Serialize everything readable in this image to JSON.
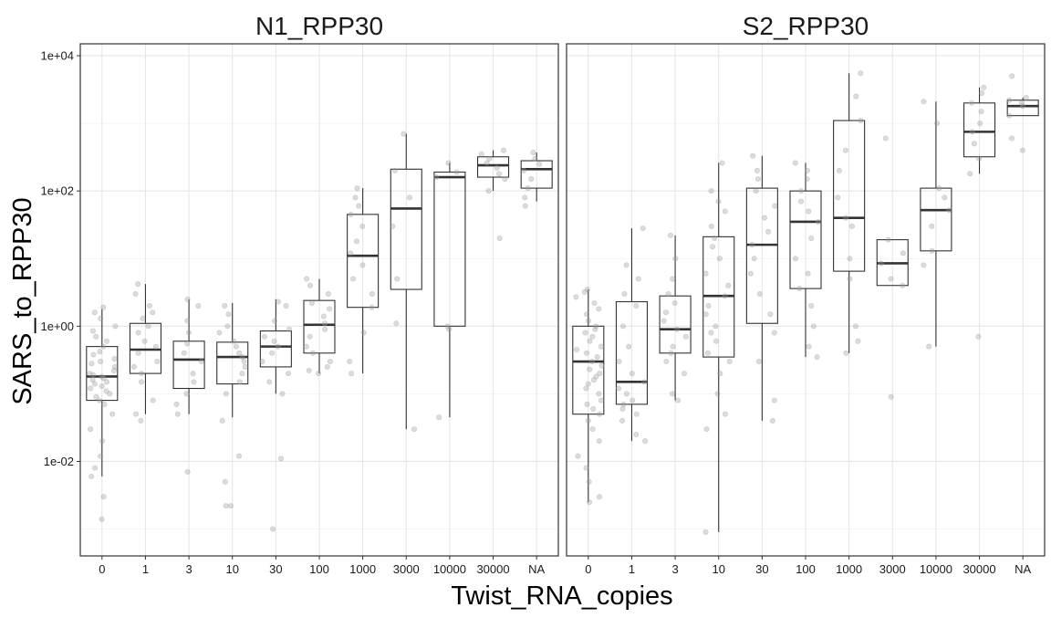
{
  "chart_data": {
    "type": "box",
    "facets": [
      "N1_RPP30",
      "S2_RPP30"
    ],
    "categories": [
      "0",
      "1",
      "3",
      "10",
      "30",
      "100",
      "1000",
      "3000",
      "10000",
      "30000",
      "NA"
    ],
    "xlabel": "Twist_RNA_copies",
    "ylabel": "SARS_to_RPP30",
    "y_scale": "log10",
    "ylim": [
      0.0004,
      15000
    ],
    "y_ticks": [
      0.01,
      1,
      100,
      10000
    ],
    "y_tick_labels": [
      "1e-02",
      "1e+00",
      "1e+02",
      "1e+04"
    ],
    "grid": true,
    "colors": {
      "box": "#333333",
      "points": "#9a9a9a",
      "grid": "#e6e6e6",
      "panel_border": "#333333"
    },
    "boxes": {
      "N1_RPP30": [
        {
          "category": "0",
          "whisker_low": 0.006,
          "q1": 0.08,
          "median": 0.18,
          "q3": 0.5,
          "whisker_high": 1.8
        },
        {
          "category": "1",
          "whisker_low": 0.05,
          "q1": 0.2,
          "median": 0.45,
          "q3": 1.1,
          "whisker_high": 4.2
        },
        {
          "category": "3",
          "whisker_low": 0.05,
          "q1": 0.12,
          "median": 0.32,
          "q3": 0.6,
          "whisker_high": 2.5
        },
        {
          "category": "10",
          "whisker_low": 0.045,
          "q1": 0.14,
          "median": 0.35,
          "q3": 0.58,
          "whisker_high": 2.2
        },
        {
          "category": "30",
          "whisker_low": 0.1,
          "q1": 0.25,
          "median": 0.5,
          "q3": 0.85,
          "whisker_high": 2.5
        },
        {
          "category": "100",
          "whisker_low": 0.2,
          "q1": 0.4,
          "median": 1.05,
          "q3": 2.4,
          "whisker_high": 5.0
        },
        {
          "category": "1000",
          "whisker_low": 0.2,
          "q1": 1.9,
          "median": 11,
          "q3": 45,
          "whisker_high": 110
        },
        {
          "category": "3000",
          "whisker_low": 0.03,
          "q1": 3.5,
          "median": 55,
          "q3": 210,
          "whisker_high": 700
        },
        {
          "category": "10000",
          "whisker_low": 0.045,
          "q1": 1.0,
          "median": 160,
          "q3": 190,
          "whisker_high": 260
        },
        {
          "category": "30000",
          "whisker_low": 100,
          "q1": 160,
          "median": 240,
          "q3": 320,
          "whisker_high": 400
        },
        {
          "category": "NA",
          "whisker_low": 70,
          "q1": 110,
          "median": 210,
          "q3": 280,
          "whisker_high": 370
        }
      ],
      "S2_RPP30": [
        {
          "category": "0",
          "whisker_low": 0.0025,
          "q1": 0.05,
          "median": 0.3,
          "q3": 1.0,
          "whisker_high": 3.5
        },
        {
          "category": "1",
          "whisker_low": 0.02,
          "q1": 0.07,
          "median": 0.15,
          "q3": 2.3,
          "whisker_high": 28
        },
        {
          "category": "3",
          "whisker_low": 0.08,
          "q1": 0.4,
          "median": 0.9,
          "q3": 2.8,
          "whisker_high": 22
        },
        {
          "category": "10",
          "whisker_low": 0.0009,
          "q1": 0.35,
          "median": 2.8,
          "q3": 21,
          "whisker_high": 260
        },
        {
          "category": "30",
          "whisker_low": 0.04,
          "q1": 1.1,
          "median": 16,
          "q3": 110,
          "whisker_high": 330
        },
        {
          "category": "100",
          "whisker_low": 0.35,
          "q1": 3.6,
          "median": 35,
          "q3": 100,
          "whisker_high": 260
        },
        {
          "category": "1000",
          "whisker_low": 0.4,
          "q1": 6.5,
          "median": 40,
          "q3": 1100,
          "whisker_high": 5500
        },
        {
          "category": "3000",
          "whisker_low": 4,
          "q1": 4,
          "median": 8.5,
          "q3": 19,
          "whisker_high": 19
        },
        {
          "category": "10000",
          "whisker_low": 0.5,
          "q1": 13,
          "median": 52,
          "q3": 110,
          "whisker_high": 2100
        },
        {
          "category": "30000",
          "whisker_low": 180,
          "q1": 320,
          "median": 750,
          "q3": 2000,
          "whisker_high": 3400
        },
        {
          "category": "NA",
          "whisker_low": 1300,
          "q1": 1300,
          "median": 1800,
          "q3": 2200,
          "whisker_high": 2400
        }
      ]
    },
    "points": {
      "N1_RPP30": {
        "0": [
          0.0014,
          0.003,
          0.006,
          0.008,
          0.012,
          0.02,
          0.03,
          0.05,
          0.07,
          0.08,
          0.09,
          0.1,
          0.11,
          0.12,
          0.13,
          0.14,
          0.15,
          0.16,
          0.17,
          0.18,
          0.19,
          0.2,
          0.22,
          0.25,
          0.28,
          0.3,
          0.33,
          0.38,
          0.42,
          0.5,
          0.6,
          0.7,
          0.85,
          1.0,
          1.3,
          1.6,
          1.9
        ],
        "1": [
          0.04,
          0.05,
          0.08,
          0.15,
          0.2,
          0.25,
          0.3,
          0.4,
          0.5,
          0.6,
          0.8,
          1.0,
          1.3,
          1.6,
          2.0,
          3.0,
          4.2
        ],
        "3": [
          0.007,
          0.05,
          0.07,
          0.1,
          0.15,
          0.2,
          0.3,
          0.4,
          0.55,
          0.8,
          1.2,
          2.0,
          2.5
        ],
        "10": [
          0.0022,
          0.0022,
          0.005,
          0.012,
          0.04,
          0.1,
          0.15,
          0.2,
          0.25,
          0.3,
          0.35,
          0.4,
          0.5,
          0.6,
          0.8,
          1.0,
          1.5,
          2.0
        ],
        "30": [
          0.001,
          0.011,
          0.1,
          0.15,
          0.2,
          0.3,
          0.4,
          0.5,
          0.6,
          0.7,
          0.9,
          1.2,
          2.0,
          2.3
        ],
        "100": [
          0.2,
          0.22,
          0.25,
          0.3,
          0.4,
          0.5,
          0.7,
          0.9,
          1.1,
          1.4,
          1.8,
          2.2,
          3.0,
          4.0,
          5.0
        ],
        "1000": [
          0.2,
          0.3,
          0.8,
          1.9,
          3.0,
          5.0,
          8.0,
          12,
          18,
          30,
          45,
          60,
          80,
          110
        ],
        "3000": [
          0.03,
          1.1,
          5.0,
          30,
          80,
          200,
          700
        ],
        "10000": [
          0.045,
          0.9,
          1.0,
          160,
          190,
          260
        ],
        "30000": [
          20,
          100,
          150,
          180,
          220,
          260,
          300,
          350,
          400
        ],
        "NA": [
          60,
          80,
          110,
          150,
          200,
          250,
          300,
          370
        ]
      },
      "S2_RPP30": {
        "0": [
          0.0025,
          0.003,
          0.005,
          0.008,
          0.012,
          0.02,
          0.03,
          0.04,
          0.05,
          0.06,
          0.07,
          0.08,
          0.1,
          0.12,
          0.14,
          0.16,
          0.18,
          0.2,
          0.23,
          0.26,
          0.3,
          0.35,
          0.4,
          0.45,
          0.5,
          0.6,
          0.7,
          0.8,
          0.9,
          1.0,
          1.2,
          1.5,
          1.8,
          2.2,
          2.7,
          3.2,
          3.5
        ],
        "1": [
          0.02,
          0.025,
          0.04,
          0.05,
          0.06,
          0.07,
          0.08,
          0.1,
          0.12,
          0.15,
          0.2,
          0.3,
          0.5,
          1.0,
          2.0,
          3.0,
          5.0,
          8.0,
          28
        ],
        "3": [
          0.08,
          0.1,
          0.2,
          0.3,
          0.4,
          0.5,
          0.7,
          0.9,
          1.2,
          1.6,
          2.2,
          3.0,
          5.0,
          10,
          22
        ],
        "10": [
          0.0009,
          0.03,
          0.05,
          0.1,
          0.2,
          0.3,
          0.4,
          0.6,
          0.8,
          1.0,
          1.5,
          2.0,
          2.8,
          4.0,
          6.0,
          10,
          15,
          20,
          30,
          50,
          70,
          100,
          260
        ],
        "30": [
          0.04,
          0.08,
          0.3,
          0.8,
          1.5,
          3.0,
          6.0,
          10,
          16,
          25,
          40,
          60,
          100,
          150,
          200,
          330
        ],
        "100": [
          0.35,
          0.5,
          1.0,
          2.0,
          3.6,
          6.0,
          10,
          20,
          35,
          50,
          70,
          100,
          150,
          200,
          260
        ],
        "1000": [
          0.4,
          0.6,
          1.0,
          5.0,
          10,
          30,
          40,
          80,
          200,
          400,
          1100,
          2500,
          5500
        ],
        "3000": [
          0.09,
          4.0,
          5.0,
          8.5,
          12,
          19,
          600
        ],
        "10000": [
          0.5,
          8.0,
          13,
          30,
          52,
          80,
          110,
          1000,
          2100
        ],
        "30000": [
          0.7,
          180,
          300,
          500,
          750,
          1000,
          1500,
          2000,
          2800,
          3400
        ],
        "NA": [
          400,
          600,
          1300,
          1800,
          2000,
          2200,
          2400,
          5000
        ]
      }
    }
  }
}
